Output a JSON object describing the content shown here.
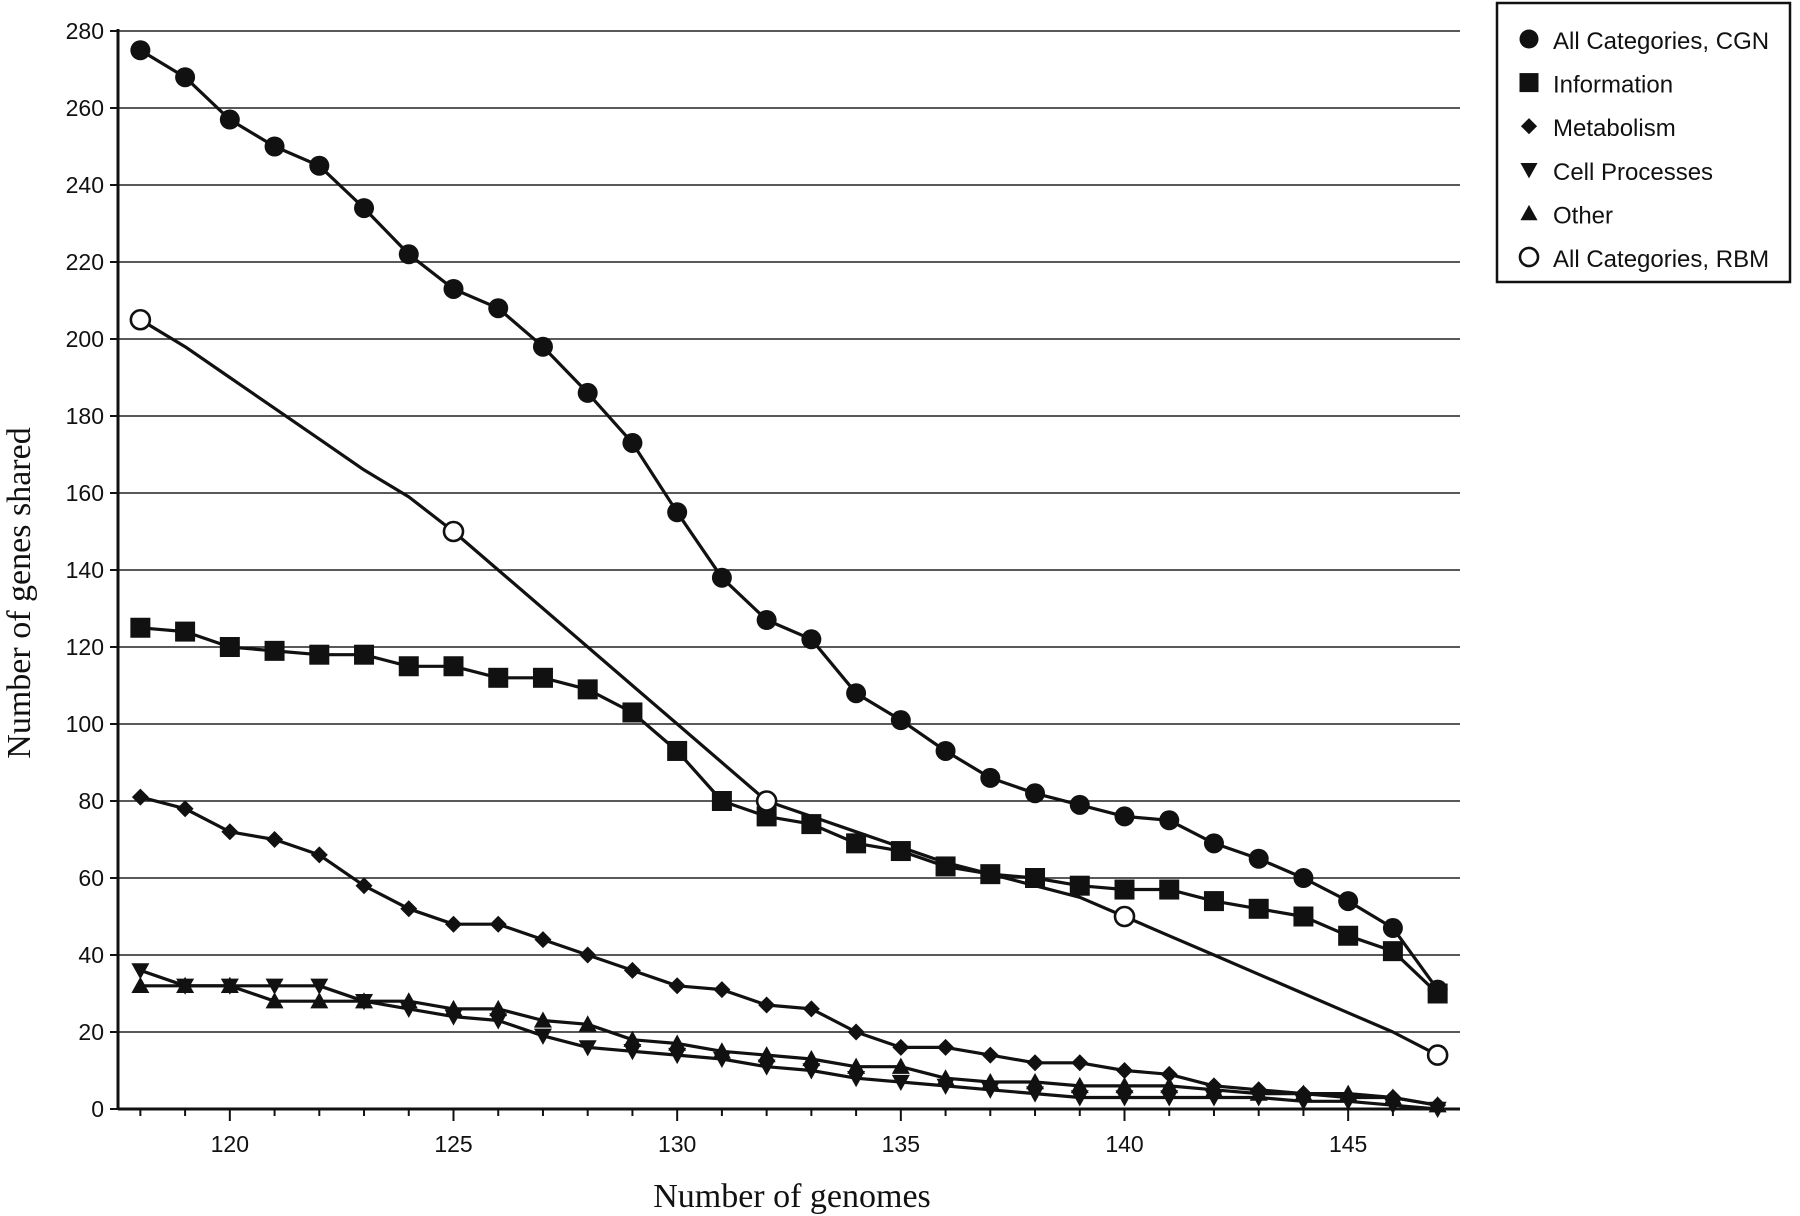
{
  "chart_data": {
    "type": "line",
    "title": "",
    "xlabel": "Number of genomes",
    "ylabel": "Number of genes shared",
    "xlim": [
      117.5,
      147.5
    ],
    "ylim": [
      0,
      280
    ],
    "x_ticks": [
      120,
      125,
      130,
      135,
      140,
      145
    ],
    "y_ticks": [
      0,
      20,
      40,
      60,
      80,
      100,
      120,
      140,
      160,
      180,
      200,
      220,
      240,
      260,
      280
    ],
    "grid": "horizontal",
    "legend_position": "top-right",
    "series": [
      {
        "name": "All Categories, CGN",
        "marker": "circle-filled",
        "x": [
          118,
          119,
          120,
          121,
          122,
          123,
          124,
          125,
          126,
          127,
          128,
          129,
          130,
          131,
          132,
          133,
          134,
          135,
          136,
          137,
          138,
          139,
          140,
          141,
          142,
          143,
          144,
          145,
          146,
          147
        ],
        "y": [
          275,
          268,
          257,
          250,
          245,
          234,
          222,
          213,
          208,
          198,
          186,
          173,
          155,
          138,
          127,
          122,
          108,
          101,
          93,
          86,
          82,
          79,
          76,
          75,
          69,
          65,
          60,
          54,
          47,
          31
        ]
      },
      {
        "name": "Information",
        "marker": "square-filled",
        "x": [
          118,
          119,
          120,
          121,
          122,
          123,
          124,
          125,
          126,
          127,
          128,
          129,
          130,
          131,
          132,
          133,
          134,
          135,
          136,
          137,
          138,
          139,
          140,
          141,
          142,
          143,
          144,
          145,
          146,
          147
        ],
        "y": [
          125,
          124,
          120,
          119,
          118,
          118,
          115,
          115,
          112,
          112,
          109,
          103,
          93,
          80,
          76,
          74,
          69,
          67,
          63,
          61,
          60,
          58,
          57,
          57,
          54,
          52,
          50,
          45,
          41,
          30
        ]
      },
      {
        "name": "Metabolism",
        "marker": "diamond-filled",
        "x": [
          118,
          119,
          120,
          121,
          122,
          123,
          124,
          125,
          126,
          127,
          128,
          129,
          130,
          131,
          132,
          133,
          134,
          135,
          136,
          137,
          138,
          139,
          140,
          141,
          142,
          143,
          144,
          145,
          146,
          147
        ],
        "y": [
          81,
          78,
          72,
          70,
          66,
          58,
          52,
          48,
          48,
          44,
          40,
          36,
          32,
          31,
          27,
          26,
          20,
          16,
          16,
          14,
          12,
          12,
          10,
          9,
          6,
          5,
          4,
          3,
          3,
          1
        ]
      },
      {
        "name": "Cell Processes",
        "marker": "triangle-down-filled",
        "x": [
          118,
          119,
          120,
          121,
          122,
          123,
          124,
          125,
          126,
          127,
          128,
          129,
          130,
          131,
          132,
          133,
          134,
          135,
          136,
          137,
          138,
          139,
          140,
          141,
          142,
          143,
          144,
          145,
          146,
          147
        ],
        "y": [
          36,
          32,
          32,
          32,
          32,
          28,
          26,
          24,
          23,
          19,
          16,
          15,
          14,
          13,
          11,
          10,
          8,
          7,
          6,
          5,
          4,
          3,
          3,
          3,
          3,
          3,
          2,
          2,
          1,
          0
        ]
      },
      {
        "name": "Other",
        "marker": "triangle-up-filled",
        "x": [
          118,
          119,
          120,
          121,
          122,
          123,
          124,
          125,
          126,
          127,
          128,
          129,
          130,
          131,
          132,
          133,
          134,
          135,
          136,
          137,
          138,
          139,
          140,
          141,
          142,
          143,
          144,
          145,
          146,
          147
        ],
        "y": [
          32,
          32,
          32,
          28,
          28,
          28,
          28,
          26,
          26,
          23,
          22,
          18,
          17,
          15,
          14,
          13,
          11,
          11,
          8,
          7,
          7,
          6,
          6,
          6,
          5,
          4,
          4,
          4,
          3,
          1
        ]
      },
      {
        "name": "All Categories, RBM",
        "marker": "circle-open",
        "markers_at": [
          118,
          125,
          132,
          140,
          147
        ],
        "x": [
          118,
          119,
          120,
          121,
          122,
          123,
          124,
          125,
          126,
          127,
          128,
          129,
          130,
          131,
          132,
          133,
          134,
          135,
          136,
          137,
          138,
          139,
          140,
          141,
          142,
          143,
          144,
          145,
          146,
          147
        ],
        "y": [
          205,
          198,
          190,
          182,
          174,
          166,
          159,
          150,
          140,
          130,
          120,
          110,
          100,
          90,
          80,
          76,
          72,
          68,
          64,
          61,
          58,
          55,
          50,
          45,
          40,
          35,
          30,
          25,
          20,
          14
        ]
      }
    ]
  }
}
